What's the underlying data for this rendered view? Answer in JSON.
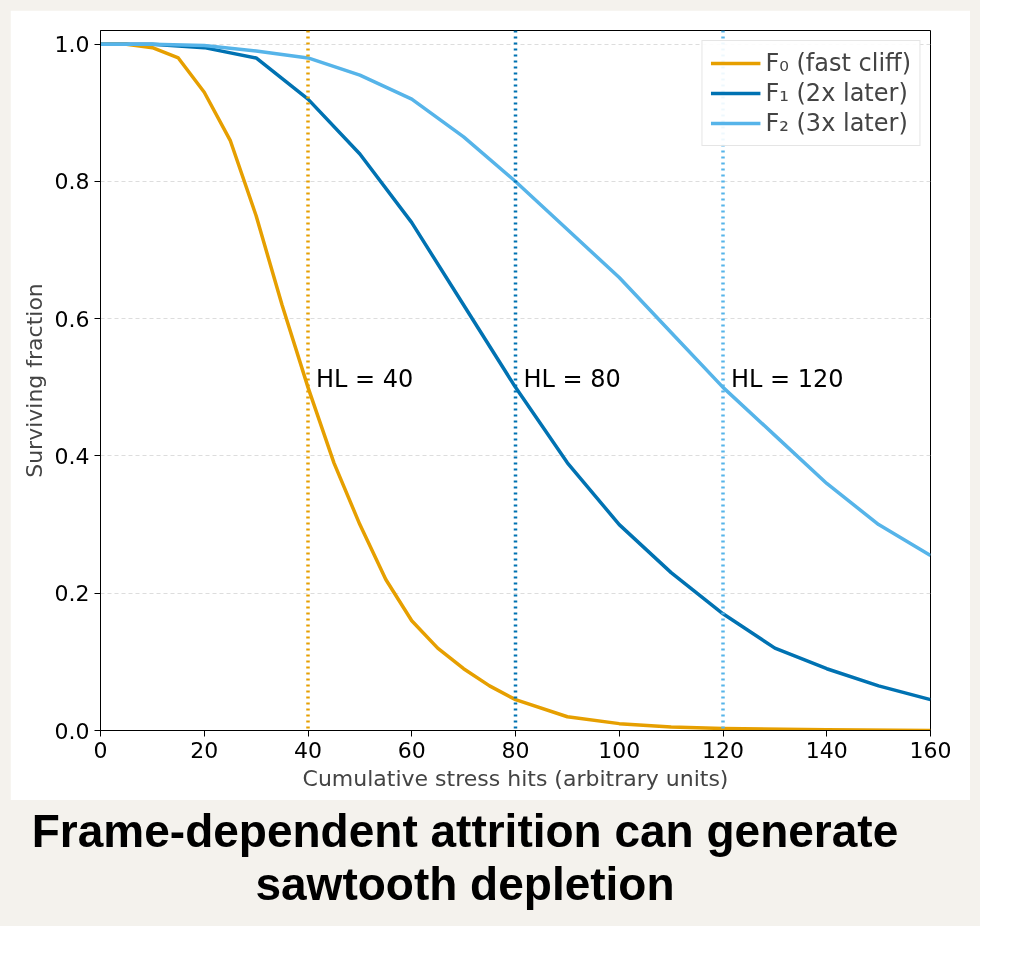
{
  "chart_data": {
    "type": "line",
    "title": "Frame-dependent attrition can generate sawtooth depletion",
    "xlabel": "Cumulative stress hits (arbitrary units)",
    "ylabel": "Surviving fraction",
    "xlim": [
      0,
      160
    ],
    "xticks": [
      0,
      20,
      40,
      60,
      80,
      100,
      120,
      140,
      160
    ],
    "ylim": [
      0,
      1.02
    ],
    "yticks": [
      {
        "value": 0,
        "label": "0.0"
      },
      0.2,
      0.4,
      0.6,
      0.8,
      {
        "value": 1,
        "label": "1.0"
      }
    ],
    "grid": "y",
    "legend": "top right",
    "line_style": "solid",
    "marker": "none",
    "series": [
      {
        "name": "F₀ (fast cliff)",
        "color": "#e69f00",
        "x": [
          0,
          5,
          10,
          15,
          20,
          25,
          30,
          35,
          40,
          45,
          50,
          55,
          60,
          65,
          70,
          75,
          80,
          90,
          100,
          110,
          120,
          140,
          160
        ],
        "values": [
          1,
          1,
          0.995,
          0.98,
          0.93,
          0.86,
          0.75,
          0.62,
          0.5,
          0.39,
          0.3,
          0.22,
          0.16,
          0.12,
          0.09,
          0.065,
          0.045,
          0.02,
          0.01,
          0.005,
          0.003,
          0.001,
          0
        ]
      },
      {
        "name": "F₁ (2x later)",
        "color": "#0072b2",
        "x": [
          0,
          10,
          20,
          30,
          40,
          50,
          60,
          70,
          80,
          90,
          100,
          110,
          120,
          130,
          140,
          150,
          160
        ],
        "values": [
          1,
          1,
          0.995,
          0.98,
          0.92,
          0.84,
          0.74,
          0.62,
          0.5,
          0.39,
          0.3,
          0.23,
          0.17,
          0.12,
          0.09,
          0.065,
          0.045
        ]
      },
      {
        "name": "F₂ (3x later)",
        "color": "#56b4e9",
        "x": [
          0,
          10,
          20,
          30,
          40,
          50,
          60,
          70,
          80,
          90,
          100,
          110,
          120,
          130,
          140,
          150,
          160
        ],
        "values": [
          1,
          1,
          0.998,
          0.99,
          0.98,
          0.955,
          0.92,
          0.865,
          0.8,
          0.73,
          0.66,
          0.58,
          0.5,
          0.43,
          0.36,
          0.3,
          0.255
        ]
      }
    ],
    "ref_lines": [
      {
        "axis": "x",
        "value": 40,
        "label": "HL = 40",
        "color": "#e69f00",
        "line_style": "dotted"
      },
      {
        "axis": "x",
        "value": 80,
        "label": "HL = 80",
        "color": "#0072b2",
        "line_style": "dotted"
      },
      {
        "axis": "x",
        "value": 120,
        "label": "HL = 120",
        "color": "#56b4e9",
        "line_style": "dotted"
      }
    ]
  }
}
